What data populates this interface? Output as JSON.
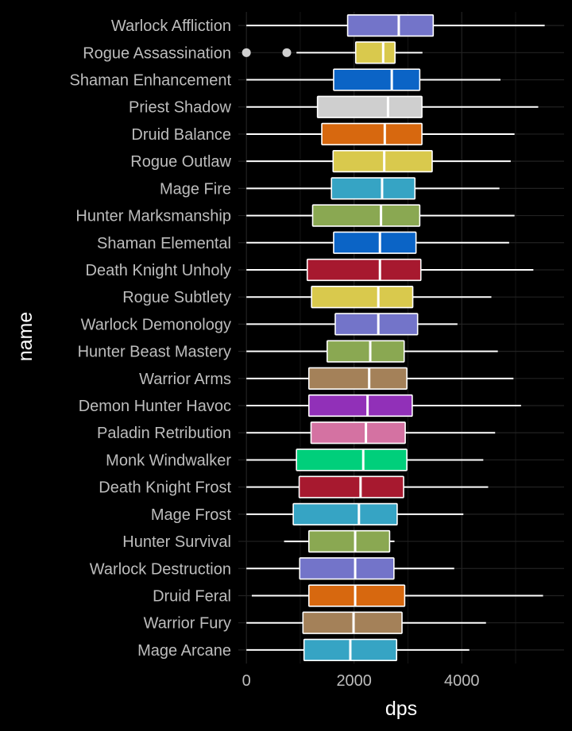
{
  "chart_data": {
    "type": "boxplot",
    "orientation": "horizontal",
    "xlabel": "dps",
    "ylabel": "name",
    "xlim": [
      -150,
      5900
    ],
    "xticks": [
      0,
      2000,
      4000
    ],
    "x_tick_labels": [
      "0",
      "2000",
      "4000"
    ],
    "grid": true,
    "legend": "none",
    "series": [
      {
        "name": "Warlock Affliction",
        "color": "#7374c9",
        "whisker_low": 0,
        "q1": 1880,
        "median": 2830,
        "q3": 3470,
        "whisker_high": 5540,
        "outliers": []
      },
      {
        "name": "Rogue Assassination",
        "color": "#d9c94d",
        "whisker_low": 930,
        "q1": 2030,
        "median": 2540,
        "q3": 2760,
        "whisker_high": 3270,
        "outliers": [
          0,
          750
        ]
      },
      {
        "name": "Shaman Enhancement",
        "color": "#0b64c6",
        "whisker_low": 0,
        "q1": 1620,
        "median": 2700,
        "q3": 3220,
        "whisker_high": 4720,
        "outliers": []
      },
      {
        "name": "Priest Shadow",
        "color": "#cfcfcf",
        "whisker_low": 0,
        "q1": 1320,
        "median": 2630,
        "q3": 3260,
        "whisker_high": 5420,
        "outliers": []
      },
      {
        "name": "Druid Balance",
        "color": "#d7680f",
        "whisker_low": 0,
        "q1": 1400,
        "median": 2570,
        "q3": 3260,
        "whisker_high": 4980,
        "outliers": []
      },
      {
        "name": "Rogue Outlaw",
        "color": "#d9c94d",
        "whisker_low": 0,
        "q1": 1610,
        "median": 2560,
        "q3": 3450,
        "whisker_high": 4910,
        "outliers": []
      },
      {
        "name": "Mage Fire",
        "color": "#36a4c4",
        "whisker_low": 0,
        "q1": 1580,
        "median": 2520,
        "q3": 3130,
        "whisker_high": 4700,
        "outliers": []
      },
      {
        "name": "Hunter Marksmanship",
        "color": "#8aa852",
        "whisker_low": 0,
        "q1": 1230,
        "median": 2500,
        "q3": 3220,
        "whisker_high": 4980,
        "outliers": []
      },
      {
        "name": "Shaman Elemental",
        "color": "#0b64c6",
        "whisker_low": 0,
        "q1": 1620,
        "median": 2480,
        "q3": 3150,
        "whisker_high": 4880,
        "outliers": []
      },
      {
        "name": "Death Knight Unholy",
        "color": "#a7192f",
        "whisker_low": 0,
        "q1": 1130,
        "median": 2480,
        "q3": 3240,
        "whisker_high": 5330,
        "outliers": []
      },
      {
        "name": "Rogue Subtlety",
        "color": "#d9c94d",
        "whisker_low": 0,
        "q1": 1210,
        "median": 2450,
        "q3": 3090,
        "whisker_high": 4550,
        "outliers": []
      },
      {
        "name": "Warlock Demonology",
        "color": "#7374c9",
        "whisker_low": 0,
        "q1": 1650,
        "median": 2450,
        "q3": 3180,
        "whisker_high": 3920,
        "outliers": []
      },
      {
        "name": "Hunter Beast Mastery",
        "color": "#8aa852",
        "whisker_low": 0,
        "q1": 1500,
        "median": 2300,
        "q3": 2930,
        "whisker_high": 4670,
        "outliers": []
      },
      {
        "name": "Warrior Arms",
        "color": "#a48159",
        "whisker_low": 0,
        "q1": 1160,
        "median": 2280,
        "q3": 2980,
        "whisker_high": 4960,
        "outliers": []
      },
      {
        "name": "Demon Hunter Havoc",
        "color": "#9130b8",
        "whisker_low": 0,
        "q1": 1160,
        "median": 2250,
        "q3": 3080,
        "whisker_high": 5100,
        "outliers": []
      },
      {
        "name": "Paladin Retribution",
        "color": "#d472a2",
        "whisker_low": 0,
        "q1": 1200,
        "median": 2220,
        "q3": 2950,
        "whisker_high": 4620,
        "outliers": []
      },
      {
        "name": "Monk Windwalker",
        "color": "#00cf7b",
        "whisker_low": 0,
        "q1": 930,
        "median": 2170,
        "q3": 2980,
        "whisker_high": 4400,
        "outliers": []
      },
      {
        "name": "Death Knight Frost",
        "color": "#a7192f",
        "whisker_low": 0,
        "q1": 980,
        "median": 2120,
        "q3": 2920,
        "whisker_high": 4490,
        "outliers": []
      },
      {
        "name": "Mage Frost",
        "color": "#36a4c4",
        "whisker_low": 0,
        "q1": 870,
        "median": 2090,
        "q3": 2800,
        "whisker_high": 4030,
        "outliers": []
      },
      {
        "name": "Hunter Survival",
        "color": "#8aa852",
        "whisker_low": 700,
        "q1": 1160,
        "median": 2020,
        "q3": 2660,
        "whisker_high": 2750,
        "outliers": []
      },
      {
        "name": "Warlock Destruction",
        "color": "#7374c9",
        "whisker_low": 0,
        "q1": 990,
        "median": 2020,
        "q3": 2740,
        "whisker_high": 3860,
        "outliers": []
      },
      {
        "name": "Druid Feral",
        "color": "#d7680f",
        "whisker_low": 100,
        "q1": 1160,
        "median": 2020,
        "q3": 2940,
        "whisker_high": 5510,
        "outliers": []
      },
      {
        "name": "Warrior Fury",
        "color": "#a48159",
        "whisker_low": 0,
        "q1": 1050,
        "median": 1990,
        "q3": 2890,
        "whisker_high": 4450,
        "outliers": []
      },
      {
        "name": "Mage Arcane",
        "color": "#36a4c4",
        "whisker_low": 0,
        "q1": 1070,
        "median": 1930,
        "q3": 2790,
        "whisker_high": 4140,
        "outliers": []
      }
    ]
  }
}
